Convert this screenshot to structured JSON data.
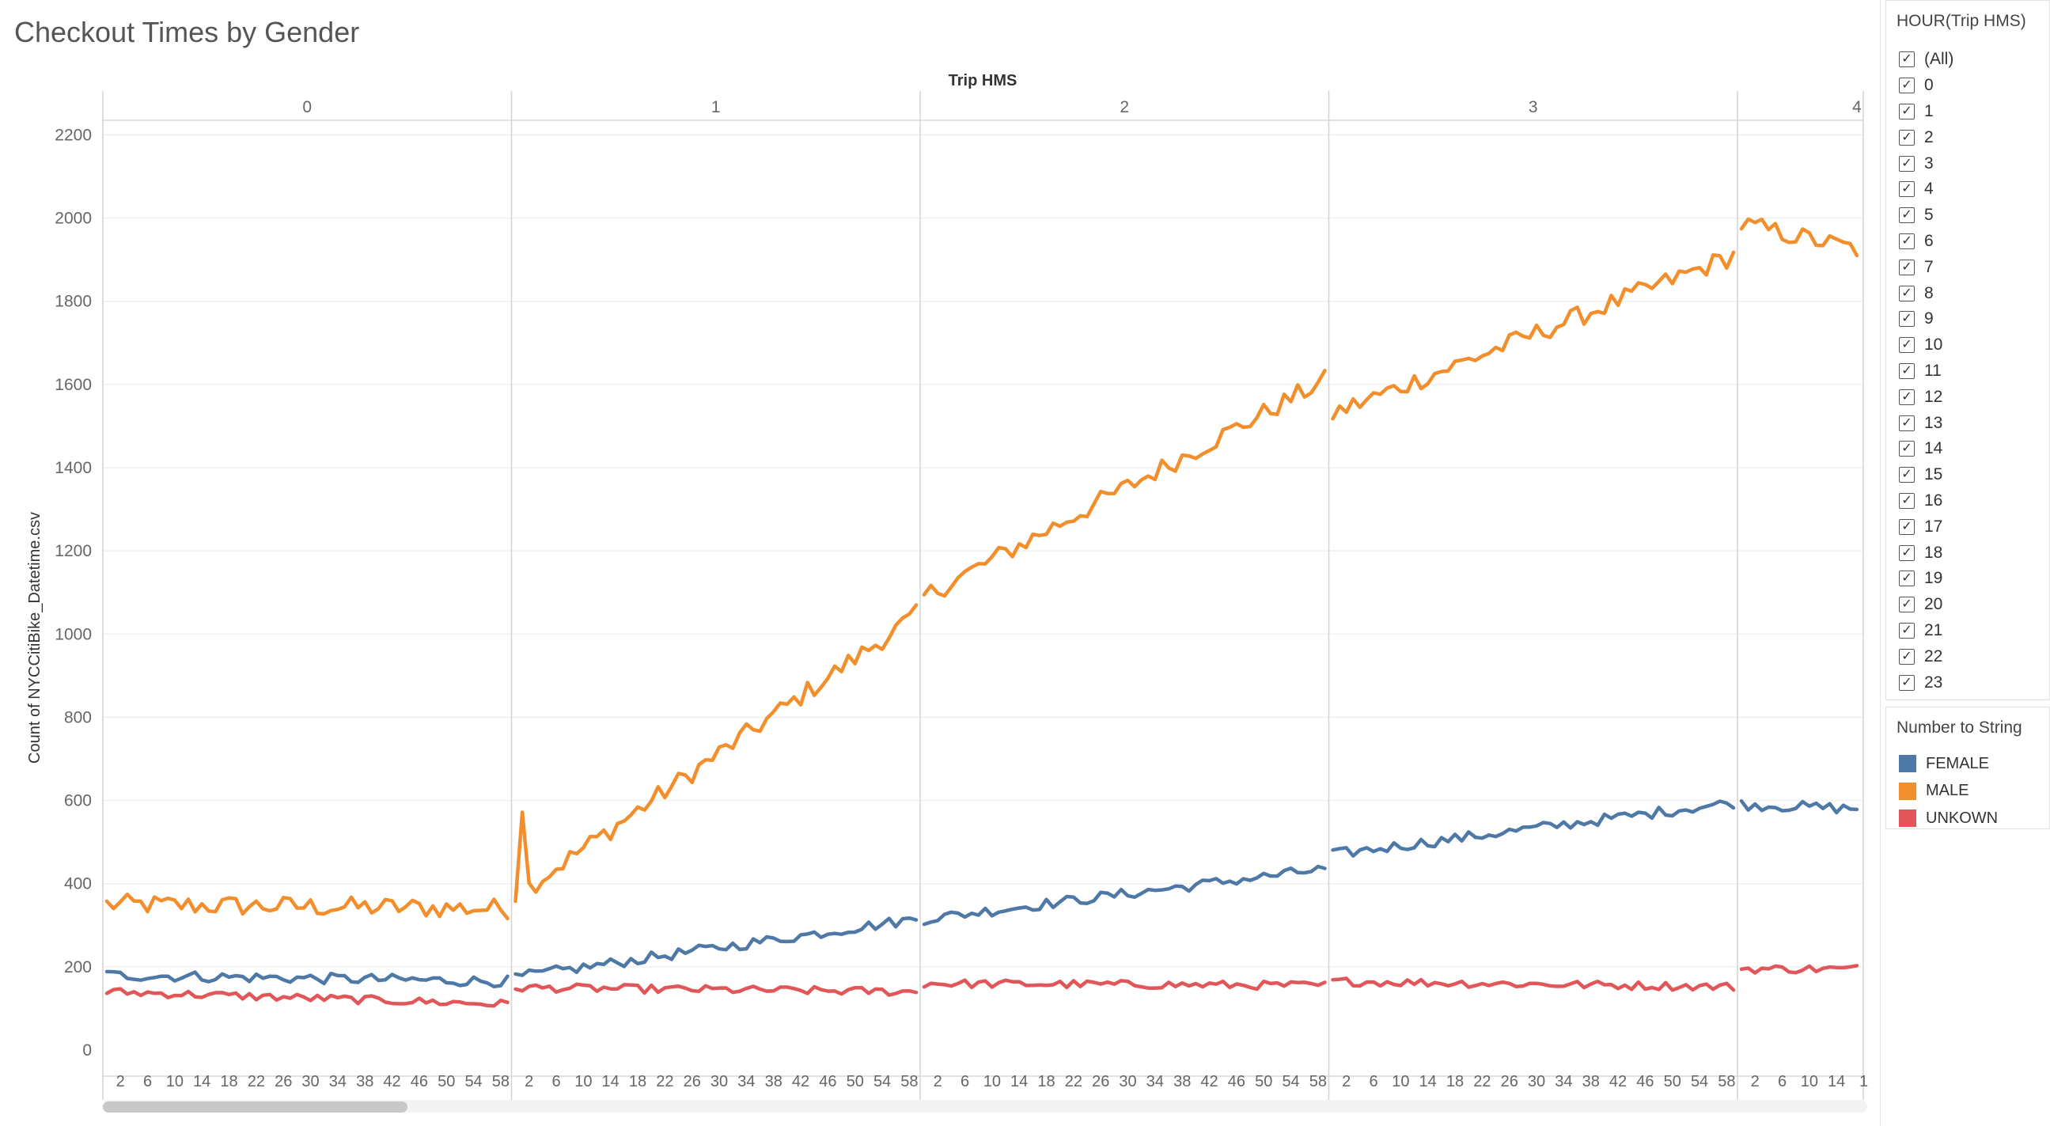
{
  "title": "Checkout Times by Gender",
  "chart_data": {
    "type": "line",
    "title": "Checkout Times by Gender",
    "column_header": "Trip HMS",
    "panels": [
      "0",
      "1",
      "2",
      "3",
      "4"
    ],
    "ylabel": "Count of NYCCitiBike_Datetime.csv",
    "ylim": [
      0,
      2300
    ],
    "yticks": [
      0,
      200,
      400,
      600,
      800,
      1000,
      1200,
      1400,
      1600,
      1800,
      2000,
      2200
    ],
    "x_tick_labels": [
      "2",
      "6",
      "10",
      "14",
      "18",
      "22",
      "26",
      "30",
      "34",
      "38",
      "42",
      "46",
      "50",
      "54",
      "58"
    ],
    "last_panel_x_tick_labels": [
      "2",
      "6",
      "10",
      "14",
      "1"
    ],
    "x_description": "minute within hour (0-59)",
    "series": [
      {
        "name": "MALE",
        "color": "#f28e2b",
        "panel_start": [
          350,
          370,
          1090,
          1530,
          1985
        ],
        "panel_end": [
          340,
          1045,
          1610,
          1910,
          1925
        ],
        "wobble": 25
      },
      {
        "name": "FEMALE",
        "color": "#4e79a7",
        "panel_start": [
          180,
          175,
          315,
          470,
          590
        ],
        "panel_end": [
          165,
          315,
          435,
          595,
          580
        ],
        "wobble": 13
      },
      {
        "name": "UNKOWN",
        "color": "#e15759",
        "panel_start": [
          140,
          150,
          160,
          165,
          195
        ],
        "panel_end": [
          110,
          140,
          155,
          152,
          195
        ],
        "wobble": 10
      }
    ],
    "legend_position": "right"
  },
  "filter": {
    "title": "HOUR(Trip HMS)",
    "check_mark": "✓",
    "items": [
      "(All)",
      "0",
      "1",
      "2",
      "3",
      "4",
      "5",
      "6",
      "7",
      "8",
      "9",
      "10",
      "11",
      "12",
      "13",
      "14",
      "15",
      "16",
      "17",
      "18",
      "19",
      "20",
      "21",
      "22",
      "23"
    ]
  },
  "legend": {
    "title": "Number to String",
    "items": [
      {
        "label": "FEMALE",
        "color": "#4e79a7"
      },
      {
        "label": "MALE",
        "color": "#f28e2b"
      },
      {
        "label": "UNKOWN",
        "color": "#e15759"
      }
    ]
  }
}
